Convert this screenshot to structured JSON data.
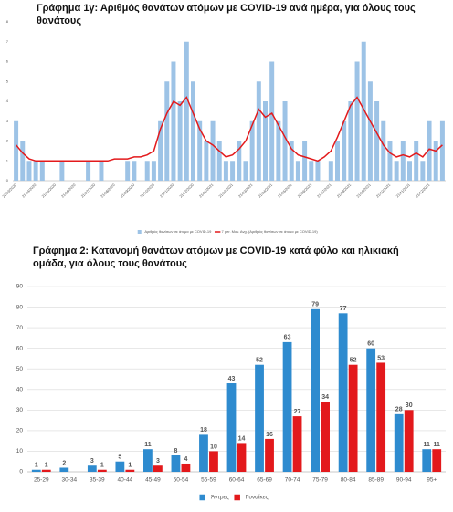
{
  "chart_data": [
    {
      "type": "bar",
      "title": "Γράφημα 1γ: Αριθμός θανάτων ατόμων με COVID-19 ανά ημέρα, για όλους τους θανάτους",
      "categories": [
        "21/03/2020",
        null,
        null,
        "21/04/2020",
        null,
        null,
        "21/05/2020",
        null,
        null,
        "21/06/2020",
        null,
        null,
        "21/07/2020",
        null,
        null,
        "21/08/2020",
        null,
        null,
        "21/09/2020",
        null,
        null,
        "21/10/2020",
        null,
        null,
        "21/11/2020",
        null,
        null,
        "21/12/2020",
        null,
        null,
        "21/01/2021",
        null,
        null,
        "21/02/2021",
        null,
        null,
        "21/03/2021",
        null,
        null,
        "21/04/2021",
        null,
        null,
        "21/05/2021",
        null,
        null,
        "21/06/2021",
        null,
        null,
        "21/07/2021",
        null,
        null,
        "21/08/2021",
        null,
        null,
        "21/09/2021",
        null,
        null,
        "21/10/2021",
        null,
        null,
        "21/11/2021",
        null,
        null,
        "21/12/2021",
        null,
        null
      ],
      "series": [
        {
          "name": "Αριθμός θανάτων σε άτομα με COVID-19",
          "type": "bar",
          "color": "#9dc3e6",
          "values": [
            3,
            2,
            1,
            1,
            1,
            0,
            0,
            1,
            0,
            0,
            0,
            1,
            0,
            1,
            0,
            0,
            0,
            1,
            1,
            0,
            1,
            1,
            3,
            5,
            6,
            4,
            7,
            5,
            3,
            2,
            3,
            2,
            1,
            1,
            2,
            1,
            3,
            5,
            4,
            6,
            3,
            4,
            2,
            1,
            2,
            1,
            1,
            0,
            1,
            2,
            3,
            4,
            6,
            7,
            5,
            4,
            3,
            2,
            1,
            2,
            1,
            2,
            1,
            3,
            2,
            3
          ]
        },
        {
          "name": "7 per. Mov. Avg. (Αριθμός θανάτων σε άτομα με COVID-19)",
          "type": "line",
          "color": "#e31a1c",
          "values": [
            1.8,
            1.4,
            1.1,
            1.0,
            1.0,
            1.0,
            1.0,
            1.0,
            1.0,
            1.0,
            1.0,
            1.0,
            1.0,
            1.0,
            1.0,
            1.1,
            1.1,
            1.1,
            1.2,
            1.2,
            1.3,
            1.5,
            2.6,
            3.4,
            4.0,
            3.8,
            4.2,
            3.4,
            2.6,
            2.0,
            1.8,
            1.5,
            1.2,
            1.3,
            1.6,
            2.0,
            2.8,
            3.6,
            3.2,
            3.4,
            2.8,
            2.2,
            1.6,
            1.3,
            1.2,
            1.1,
            1.0,
            1.2,
            1.5,
            2.2,
            3.0,
            3.8,
            4.2,
            3.6,
            3.0,
            2.4,
            1.8,
            1.4,
            1.2,
            1.3,
            1.2,
            1.4,
            1.2,
            1.6,
            1.5,
            1.8
          ]
        }
      ],
      "ylim": [
        0,
        8
      ],
      "yticks": [
        0,
        1,
        2,
        3,
        4,
        5,
        6,
        7,
        8
      ],
      "grid": false,
      "data_labels": false
    },
    {
      "type": "bar",
      "title": "Γράφημα 2: Κατανομή θανάτων ατόμων με COVID-19 κατά φύλο και ηλικιακή ομάδα, για όλους τους θανάτους",
      "categories": [
        "25-29",
        "30-34",
        "35-39",
        "40-44",
        "45-49",
        "50-54",
        "55-59",
        "60-64",
        "65-69",
        "70-74",
        "75-79",
        "80-84",
        "85-89",
        "90-94",
        "95+"
      ],
      "series": [
        {
          "name": "Άντρες",
          "type": "bar",
          "color": "#2e8bcf",
          "values": [
            1,
            2,
            3,
            5,
            11,
            8,
            18,
            43,
            52,
            63,
            79,
            77,
            60,
            28,
            11
          ]
        },
        {
          "name": "Γυναίκες",
          "type": "bar",
          "color": "#e3191c",
          "values": [
            1,
            null,
            1,
            1,
            3,
            4,
            10,
            14,
            16,
            27,
            34,
            52,
            53,
            30,
            11
          ]
        }
      ],
      "ylim": [
        0,
        90
      ],
      "yticks": [
        0,
        10,
        20,
        30,
        40,
        50,
        60,
        70,
        80,
        90
      ],
      "grid": true,
      "data_labels": true
    }
  ]
}
